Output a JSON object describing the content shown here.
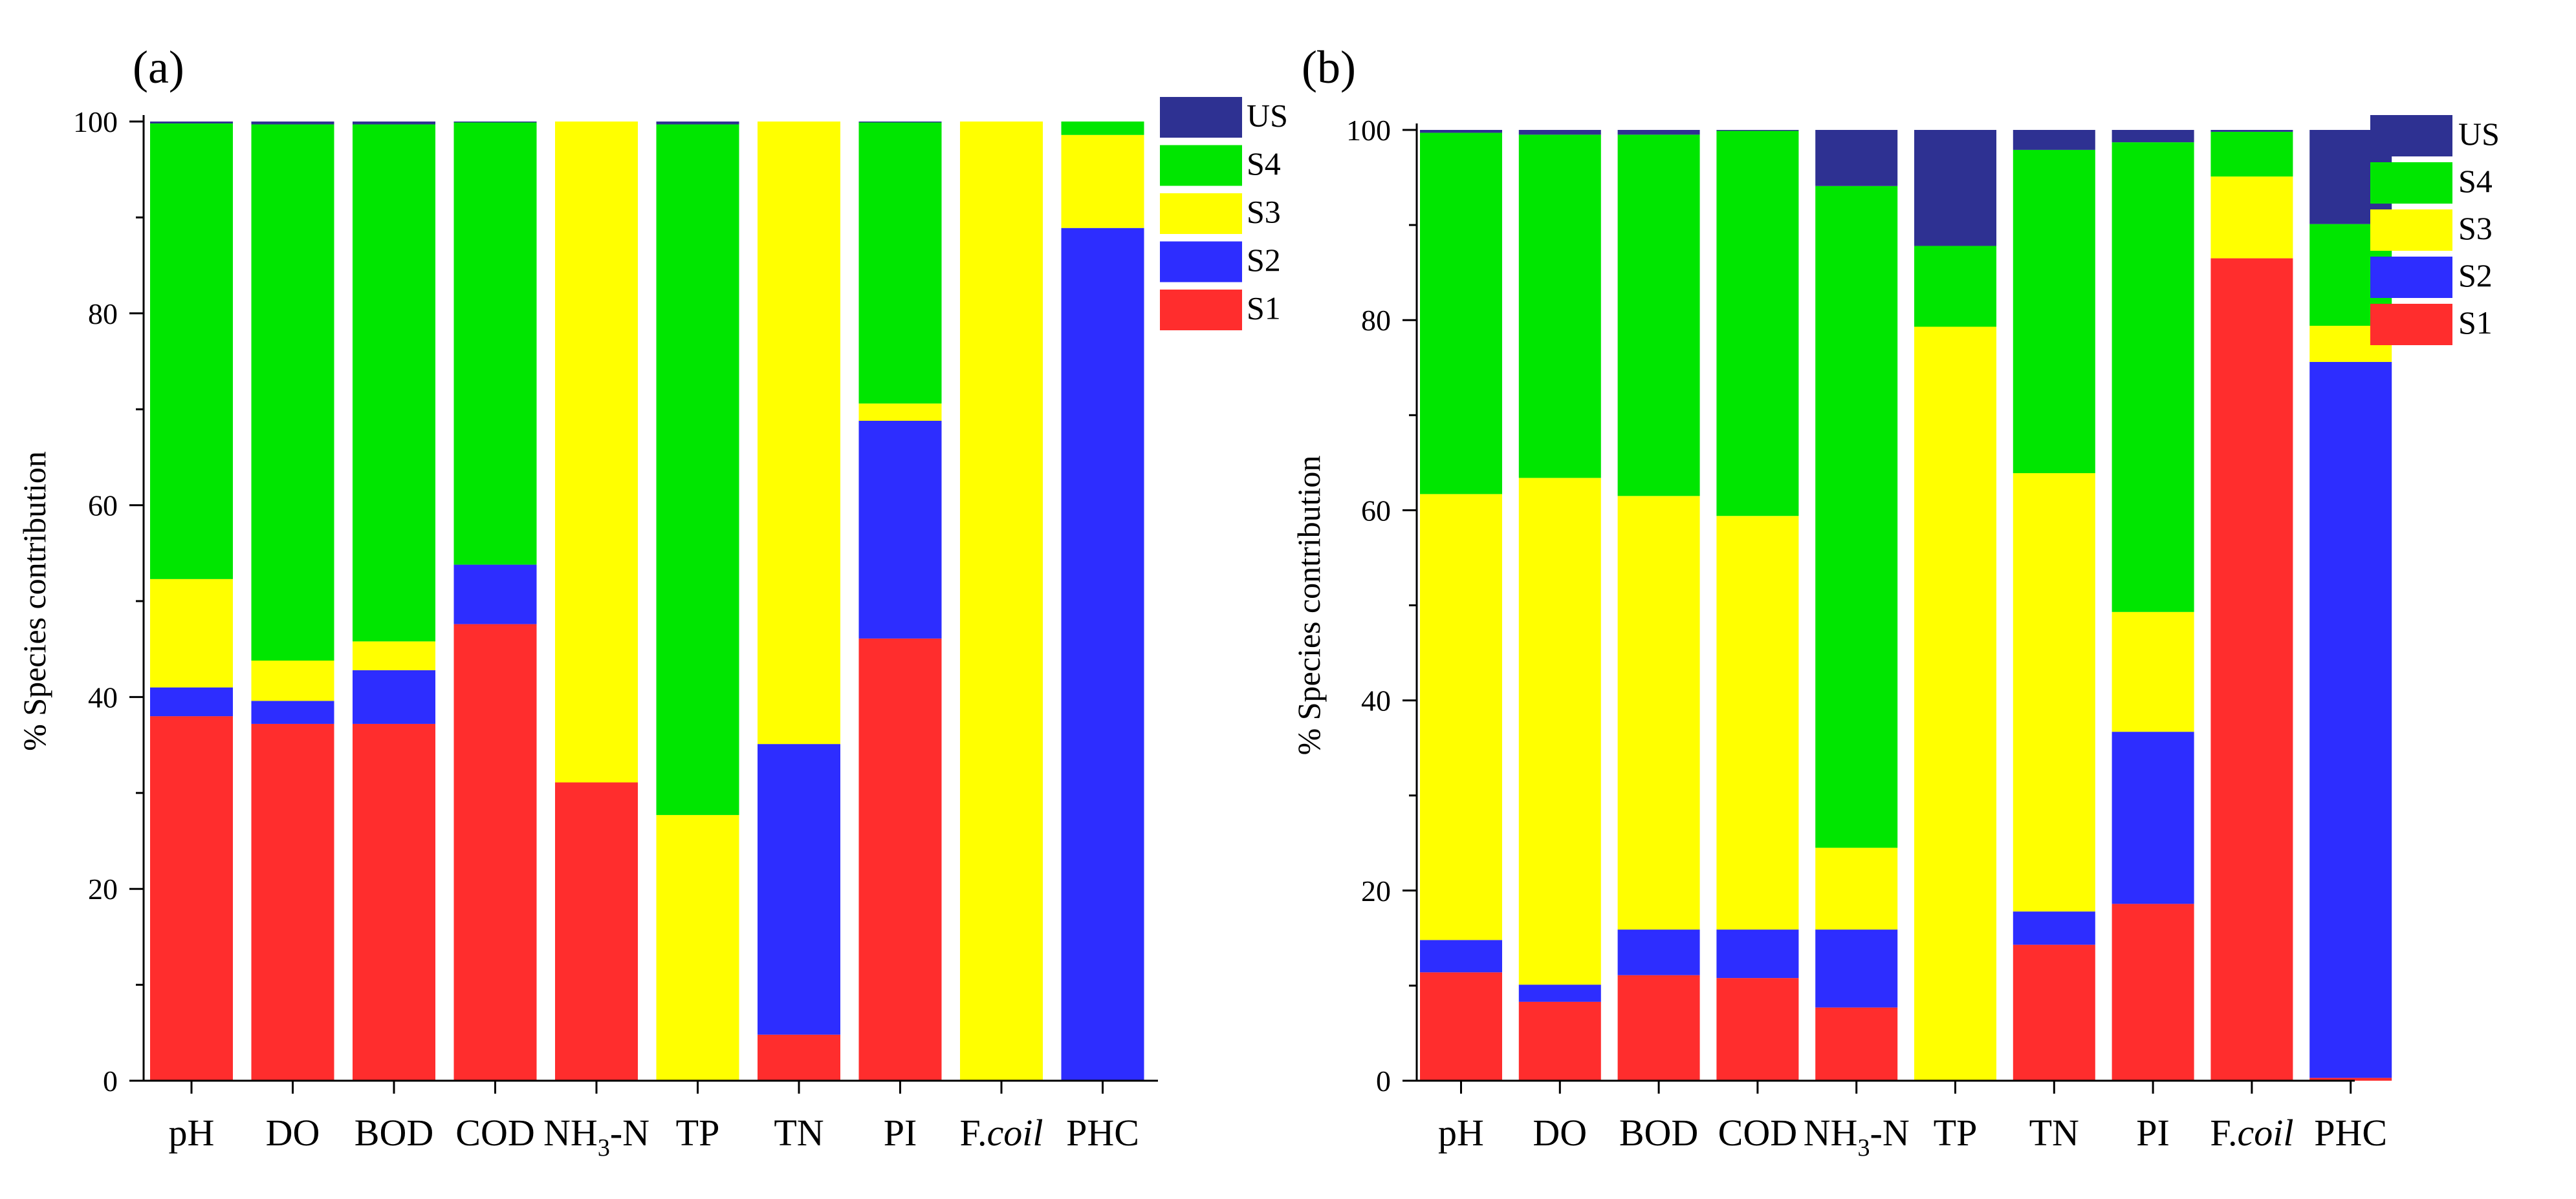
{
  "colors": {
    "S1": "#ff2d2d",
    "S2": "#2d2dff",
    "S3": "#ffff00",
    "S4": "#00e600",
    "US": "#2e3192"
  },
  "chart_data": [
    {
      "type": "bar",
      "stacked": true,
      "panel_label": "(a)",
      "ylabel": "% Species contribution",
      "ylim": [
        0,
        100
      ],
      "yticks": [
        "0",
        "20",
        "40",
        "60",
        "80",
        "100"
      ],
      "categories": [
        "pH",
        "DO",
        "BOD",
        "COD",
        "NH3-N",
        "TP",
        "TN",
        "PI",
        "F.coil",
        "PHC"
      ],
      "legend": [
        "US",
        "S4",
        "S3",
        "S2",
        "S1"
      ],
      "legend_position": "top-right",
      "series": [
        {
          "name": "S1",
          "values": [
            38.0,
            37.2,
            37.2,
            47.6,
            31.1,
            0.0,
            4.8,
            46.1,
            0.0,
            0.0
          ]
        },
        {
          "name": "S2",
          "values": [
            3.0,
            2.4,
            5.6,
            6.2,
            0.0,
            0.0,
            30.3,
            22.7,
            0.0,
            88.9
          ]
        },
        {
          "name": "S3",
          "values": [
            11.3,
            4.2,
            3.0,
            0.0,
            68.9,
            27.7,
            64.9,
            1.8,
            100.0,
            9.7
          ]
        },
        {
          "name": "S4",
          "values": [
            47.5,
            55.9,
            53.9,
            46.1,
            0.0,
            72.0,
            0.0,
            29.3,
            0.0,
            1.4
          ]
        },
        {
          "name": "US",
          "values": [
            0.2,
            0.3,
            0.3,
            0.1,
            0.0,
            0.3,
            0.0,
            0.1,
            0.0,
            0.0
          ]
        }
      ]
    },
    {
      "type": "bar",
      "stacked": true,
      "panel_label": "(b)",
      "ylabel": "% Species contribution",
      "ylim": [
        0,
        100
      ],
      "yticks": [
        "0",
        "20",
        "40",
        "60",
        "80",
        "100"
      ],
      "categories": [
        "pH",
        "DO",
        "BOD",
        "COD",
        "NH3-N",
        "TP",
        "TN",
        "PI",
        "F.coil",
        "PHC"
      ],
      "legend": [
        "US",
        "S4",
        "S3",
        "S2",
        "S1"
      ],
      "legend_position": "top-right",
      "series": [
        {
          "name": "S1",
          "values": [
            11.4,
            8.3,
            11.1,
            10.8,
            7.7,
            0.0,
            14.3,
            18.6,
            86.5,
            0.3
          ]
        },
        {
          "name": "S2",
          "values": [
            3.4,
            1.8,
            4.8,
            5.1,
            8.2,
            0.0,
            3.5,
            18.1,
            0.0,
            75.3
          ]
        },
        {
          "name": "S3",
          "values": [
            46.9,
            53.3,
            45.6,
            43.5,
            8.6,
            79.3,
            46.1,
            12.6,
            8.6,
            3.8
          ]
        },
        {
          "name": "S4",
          "values": [
            38.0,
            36.1,
            38.0,
            40.5,
            69.6,
            8.5,
            34.0,
            49.4,
            4.7,
            10.7
          ]
        },
        {
          "name": "US",
          "values": [
            0.3,
            0.5,
            0.5,
            0.1,
            5.9,
            12.2,
            2.1,
            1.3,
            0.2,
            9.9
          ]
        }
      ]
    }
  ]
}
